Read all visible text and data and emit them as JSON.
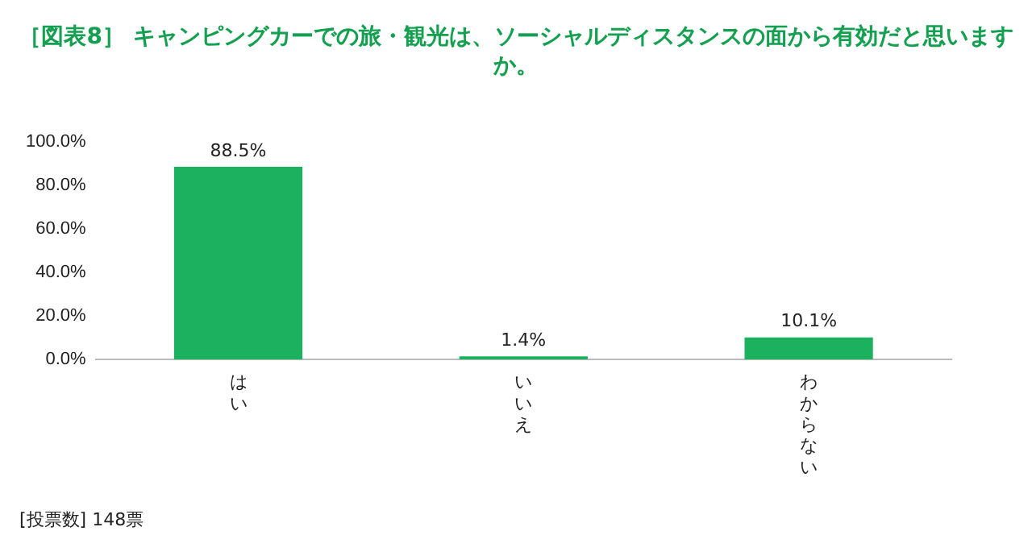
{
  "chart_data": {
    "type": "bar",
    "title": "［図表8］ キャンピングカーでの旅・観光は、ソーシャルディスタンスの面から有効だと思いますか。",
    "categories": [
      "はい",
      "いいえ",
      "わからない"
    ],
    "values": [
      88.5,
      1.4,
      10.1
    ],
    "color": "#1cb15f",
    "value_labels": [
      "88.5%",
      "1.4%",
      "10.1%"
    ],
    "ylim": [
      0,
      100
    ],
    "yticks": [
      {
        "value": 0,
        "label": "0.0%"
      },
      {
        "value": 20,
        "label": "20.0%"
      },
      {
        "value": 40,
        "label": "40.0%"
      },
      {
        "value": 60,
        "label": "60.0%"
      },
      {
        "value": 80,
        "label": "80.0%"
      },
      {
        "value": 100,
        "label": "100.0%"
      }
    ],
    "grid": false,
    "legend": false,
    "annotations": [
      "[投票数] 148票"
    ]
  }
}
